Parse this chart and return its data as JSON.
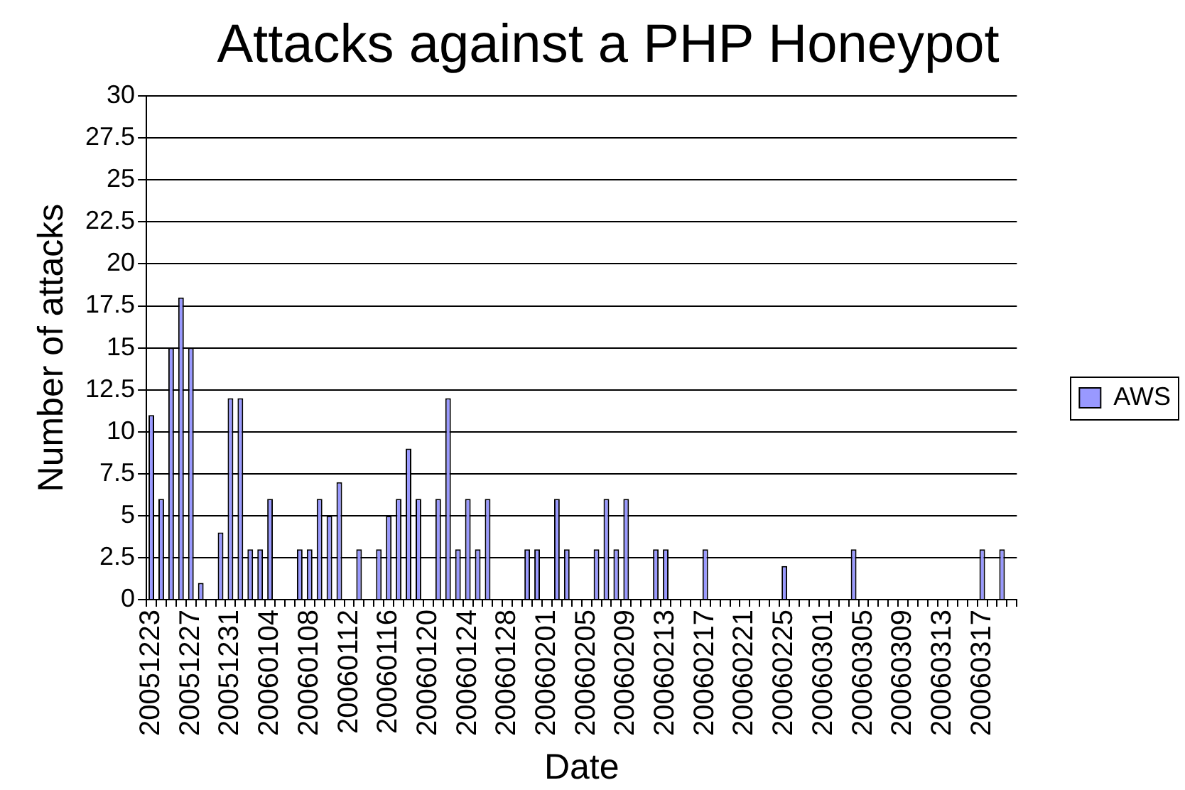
{
  "chart_data": {
    "type": "bar",
    "title": "Attacks against a PHP Honeypot",
    "xlabel": "Date",
    "ylabel": "Number of attacks",
    "categories": [
      "20051223",
      null,
      null,
      null,
      "20051227",
      null,
      null,
      null,
      "20051231",
      null,
      null,
      null,
      "20060104",
      null,
      null,
      null,
      "20060108",
      null,
      null,
      null,
      "20060112",
      null,
      null,
      null,
      "20060116",
      null,
      null,
      null,
      "20060120",
      null,
      null,
      null,
      "20060124",
      null,
      null,
      null,
      "20060128",
      null,
      null,
      null,
      "20060201",
      null,
      null,
      null,
      "20060205",
      null,
      null,
      null,
      "20060209",
      null,
      null,
      null,
      "20060213",
      null,
      null,
      null,
      "20060217",
      null,
      null,
      null,
      "20060221",
      null,
      null,
      null,
      "20060225",
      null,
      null,
      null,
      "20060301",
      null,
      null,
      null,
      "20060305",
      null,
      null,
      null,
      "20060309",
      null,
      null,
      null,
      "20060313",
      null,
      null,
      null,
      "20060317",
      null,
      null,
      null
    ],
    "series": [
      {
        "name": "AWS",
        "color": "#9999ff",
        "values": [
          11,
          6,
          15,
          18,
          15,
          1,
          0,
          4,
          12,
          12,
          3,
          3,
          6,
          0,
          0,
          3,
          3,
          6,
          5,
          7,
          0,
          3,
          0,
          3,
          5,
          6,
          9,
          6,
          0,
          6,
          12,
          3,
          6,
          3,
          6,
          0,
          0,
          0,
          3,
          3,
          0,
          6,
          3,
          0,
          0,
          3,
          6,
          3,
          6,
          0,
          0,
          3,
          3,
          0,
          0,
          0,
          3,
          0,
          0,
          0,
          0,
          0,
          0,
          0,
          2,
          0,
          0,
          0,
          0,
          0,
          0,
          3,
          0,
          0,
          0,
          0,
          0,
          0,
          0,
          0,
          0,
          0,
          0,
          0,
          3,
          0,
          3,
          0
        ]
      }
    ],
    "ylim": [
      0,
      30
    ],
    "yticks": [
      0,
      2.5,
      5,
      7.5,
      10,
      12.5,
      15,
      17.5,
      20,
      22.5,
      25,
      27.5,
      30
    ],
    "grid": "y",
    "legend": "right"
  }
}
